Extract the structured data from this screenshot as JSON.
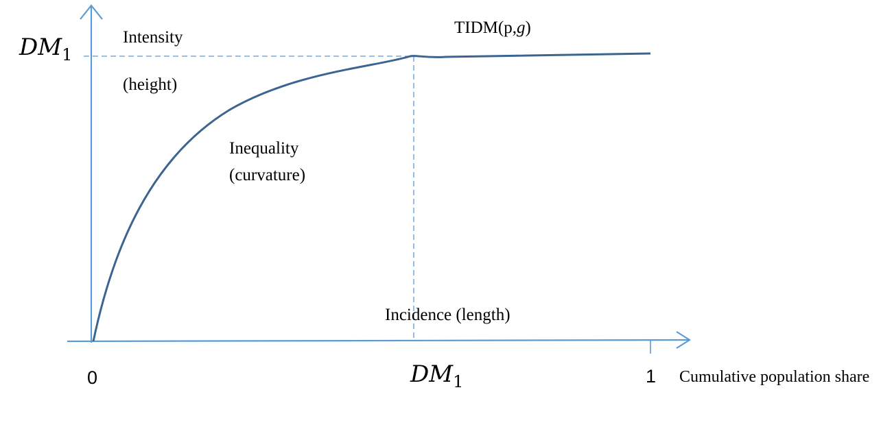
{
  "colors": {
    "axis": "#5b9bd5",
    "curve": "#3c6490",
    "guide": "#5b9bd5",
    "text": "#000000"
  },
  "labels": {
    "y_axis_marker_var": "DM",
    "y_axis_marker_sub": "1",
    "x_axis_marker_var": "DM",
    "x_axis_marker_sub": "1",
    "origin": "0",
    "x_end": "1",
    "x_axis_title": "Cumulative population share",
    "curve_name_prefix": "TIDM(p,",
    "curve_name_var": "g",
    "curve_name_suffix": ")",
    "intensity": "Intensity",
    "intensity_note": "(height)",
    "inequality": "Inequality",
    "inequality_note": "(curvature)",
    "incidence": "Incidence (length)"
  }
}
